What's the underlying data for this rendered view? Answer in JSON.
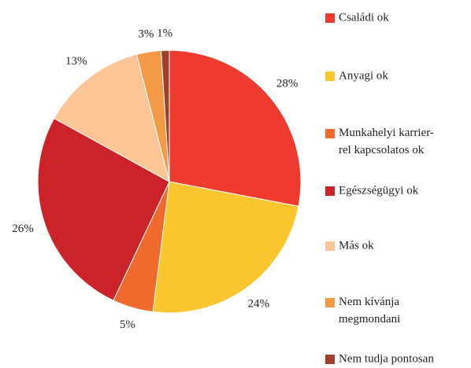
{
  "chart_data": {
    "type": "pie",
    "categories": [
      "Családi ok",
      "Anyagi ok",
      "Munkahelyi karrier-\nrel kapcsolatos ok",
      "Egészségügyi ok",
      "Más ok",
      "Nem kívánja\nmegmondani",
      "Nem tudja pontosan"
    ],
    "values": [
      28,
      24,
      5,
      26,
      13,
      3,
      1
    ],
    "value_labels": [
      "28%",
      "24%",
      "5%",
      "26%",
      "13%",
      "3%",
      "1%"
    ],
    "colors": [
      "#ee3a2f",
      "#fcc62e",
      "#ef6a2c",
      "#cc2229",
      "#fbc595",
      "#f29a45",
      "#a0402a"
    ],
    "legend": "right"
  }
}
